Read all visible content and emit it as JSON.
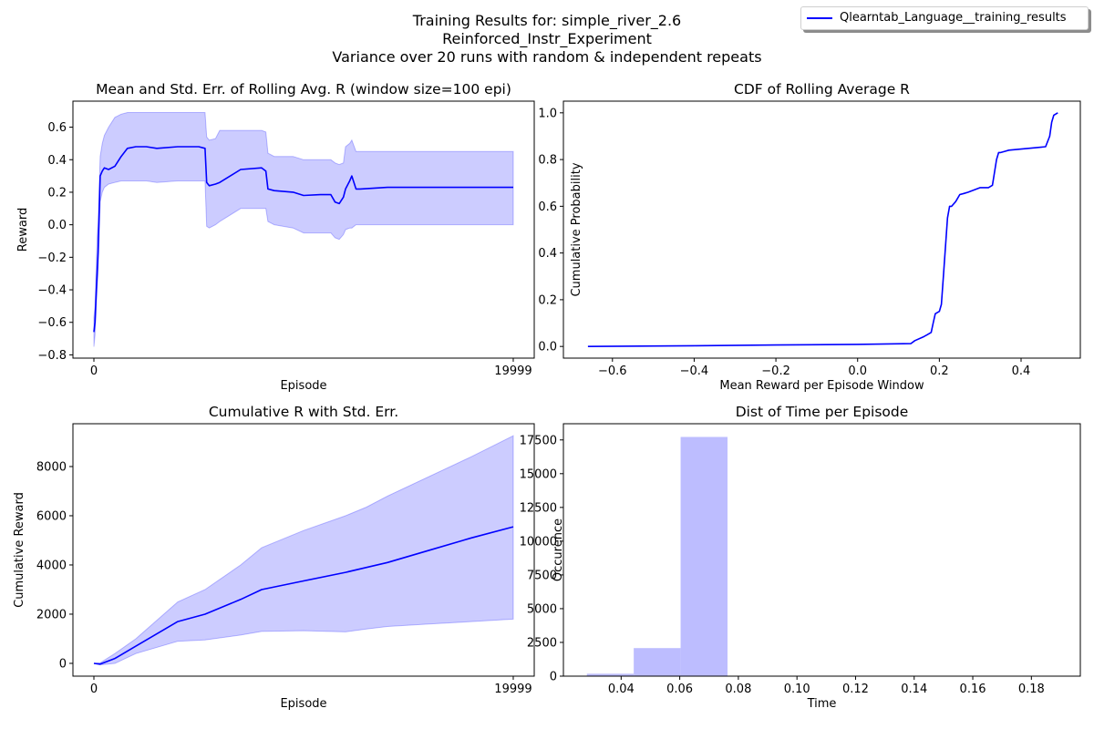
{
  "figure": {
    "suptitle_lines": [
      "Training Results for: simple_river_2.6",
      "Reinforced_Instr_Experiment",
      "Variance over 20 runs with random & independent repeats"
    ],
    "legend_label": "Qlearntab_Language__training_results",
    "colors": {
      "line": "#0000ff",
      "band": "#0000ff",
      "hist": "#bdbdff"
    }
  },
  "chart_data": [
    {
      "type": "line",
      "title": "Mean and Std. Err. of Rolling Avg. R (window size=100 epi)",
      "xlabel": "Episode",
      "ylabel": "Reward",
      "xlim": [
        -1000,
        21000
      ],
      "ylim": [
        -0.82,
        0.76
      ],
      "xticks": [
        0,
        19999
      ],
      "xtick_labels": [
        "0",
        "19999"
      ],
      "yticks": [
        -0.8,
        -0.6,
        -0.4,
        -0.2,
        0.0,
        0.2,
        0.4,
        0.6
      ],
      "ytick_labels": [
        "−0.8",
        "−0.6",
        "−0.4",
        "−0.2",
        "0.0",
        "0.2",
        "0.4",
        "0.6"
      ],
      "series": [
        {
          "x": [
            0,
            50,
            100,
            150,
            200,
            300,
            400,
            500,
            700,
            1000,
            1300,
            1600,
            2000,
            2500,
            3000,
            4000,
            5000,
            5300,
            5380,
            5500,
            5800,
            6000,
            7000,
            8000,
            8200,
            8300,
            8600,
            9500,
            10000,
            10800,
            11300,
            11500,
            11700,
            11900,
            12000,
            12200,
            12300,
            12500,
            12700,
            14000,
            16000,
            18000,
            19999
          ],
          "y": [
            -0.66,
            -0.6,
            -0.45,
            -0.3,
            -0.17,
            0.3,
            0.33,
            0.35,
            0.34,
            0.36,
            0.42,
            0.47,
            0.48,
            0.48,
            0.47,
            0.48,
            0.48,
            0.47,
            0.26,
            0.24,
            0.25,
            0.26,
            0.34,
            0.35,
            0.33,
            0.22,
            0.21,
            0.2,
            0.18,
            0.185,
            0.185,
            0.14,
            0.13,
            0.17,
            0.22,
            0.27,
            0.3,
            0.22,
            0.22,
            0.23,
            0.23,
            0.23,
            0.23
          ],
          "lower": [
            -0.75,
            -0.68,
            -0.55,
            -0.4,
            -0.3,
            0.14,
            0.2,
            0.23,
            0.25,
            0.26,
            0.27,
            0.27,
            0.27,
            0.27,
            0.26,
            0.27,
            0.27,
            0.27,
            -0.01,
            -0.02,
            0.0,
            0.02,
            0.1,
            0.1,
            0.1,
            0.02,
            0.0,
            -0.02,
            -0.05,
            -0.05,
            -0.05,
            -0.08,
            -0.09,
            -0.06,
            -0.03,
            -0.02,
            -0.02,
            0.0,
            0.0,
            0.0,
            0.0,
            0.0,
            0.0
          ],
          "upper": [
            -0.57,
            -0.5,
            -0.3,
            -0.08,
            0.02,
            0.42,
            0.5,
            0.55,
            0.6,
            0.66,
            0.68,
            0.69,
            0.69,
            0.69,
            0.69,
            0.69,
            0.69,
            0.69,
            0.54,
            0.52,
            0.53,
            0.58,
            0.58,
            0.58,
            0.57,
            0.44,
            0.42,
            0.42,
            0.4,
            0.4,
            0.4,
            0.38,
            0.37,
            0.38,
            0.48,
            0.5,
            0.52,
            0.45,
            0.45,
            0.45,
            0.45,
            0.45,
            0.45
          ]
        }
      ],
      "grid": false
    },
    {
      "type": "line",
      "title": "CDF of Rolling Average R",
      "xlabel": "Mean Reward per Episode Window",
      "ylabel": "Cumulative Probability",
      "xlim": [
        -0.72,
        0.545
      ],
      "ylim": [
        -0.05,
        1.05
      ],
      "xticks": [
        -0.6,
        -0.4,
        -0.2,
        0.0,
        0.2,
        0.4
      ],
      "xtick_labels": [
        "−0.6",
        "−0.4",
        "−0.2",
        "0.0",
        "0.2",
        "0.4"
      ],
      "yticks": [
        0.0,
        0.2,
        0.4,
        0.6,
        0.8,
        1.0
      ],
      "ytick_labels": [
        "0.0",
        "0.2",
        "0.4",
        "0.6",
        "0.8",
        "1.0"
      ],
      "series": [
        {
          "x": [
            -0.66,
            -0.4,
            -0.2,
            0.0,
            0.13,
            0.14,
            0.16,
            0.17,
            0.18,
            0.185,
            0.19,
            0.2,
            0.205,
            0.21,
            0.22,
            0.225,
            0.23,
            0.24,
            0.25,
            0.26,
            0.27,
            0.3,
            0.32,
            0.33,
            0.34,
            0.345,
            0.35,
            0.36,
            0.37,
            0.4,
            0.43,
            0.46,
            0.47,
            0.475,
            0.48,
            0.49
          ],
          "y": [
            0.0,
            0.003,
            0.006,
            0.009,
            0.012,
            0.025,
            0.04,
            0.05,
            0.06,
            0.1,
            0.14,
            0.15,
            0.18,
            0.3,
            0.55,
            0.6,
            0.6,
            0.62,
            0.65,
            0.655,
            0.66,
            0.68,
            0.68,
            0.69,
            0.8,
            0.83,
            0.83,
            0.835,
            0.84,
            0.845,
            0.85,
            0.855,
            0.9,
            0.96,
            0.99,
            1.0
          ]
        }
      ],
      "grid": false
    },
    {
      "type": "line",
      "title": "Cumulative R with Std. Err.",
      "xlabel": "Episode",
      "ylabel": "Cumulative Reward",
      "xlim": [
        -1000,
        21000
      ],
      "ylim": [
        -520,
        9740
      ],
      "xticks": [
        0,
        19999
      ],
      "xtick_labels": [
        "0",
        "19999"
      ],
      "yticks": [
        0,
        2000,
        4000,
        6000,
        8000
      ],
      "ytick_labels": [
        "0",
        "2000",
        "4000",
        "6000",
        "8000"
      ],
      "series": [
        {
          "x": [
            0,
            300,
            1000,
            2000,
            4000,
            5300,
            7000,
            8000,
            10000,
            12000,
            13000,
            14000,
            16000,
            18000,
            19999
          ],
          "y": [
            0,
            -30,
            200,
            700,
            1700,
            2000,
            2600,
            3000,
            3350,
            3700,
            3900,
            4100,
            4600,
            5100,
            5550
          ],
          "lower": [
            0,
            -60,
            0,
            400,
            900,
            950,
            1150,
            1300,
            1330,
            1280,
            1400,
            1500,
            1600,
            1700,
            1800
          ],
          "upper": [
            0,
            20,
            400,
            1000,
            2500,
            3000,
            4000,
            4700,
            5400,
            6000,
            6350,
            6800,
            7600,
            8400,
            9250
          ]
        }
      ],
      "grid": false
    },
    {
      "type": "bar",
      "title": "Dist of Time per Episode",
      "xlabel": "Time",
      "ylabel": "Occurence",
      "xlim": [
        0.0203,
        0.1967
      ],
      "ylim": [
        0,
        18700
      ],
      "xticks": [
        0.04,
        0.06,
        0.08,
        0.1,
        0.12,
        0.14,
        0.16,
        0.18
      ],
      "xtick_labels": [
        "0.04",
        "0.06",
        "0.08",
        "0.10",
        "0.12",
        "0.14",
        "0.16",
        "0.18"
      ],
      "yticks": [
        0,
        2500,
        5000,
        7500,
        10000,
        12500,
        15000,
        17500
      ],
      "ytick_labels": [
        "0",
        "2500",
        "5000",
        "7500",
        "10000",
        "12500",
        "15000",
        "17500"
      ],
      "bin_edges": [
        0.0283,
        0.0443,
        0.0603,
        0.0763,
        0.0923,
        0.1083,
        0.1243,
        0.1403,
        0.1563,
        0.1723,
        0.1883
      ],
      "counts": [
        180,
        2080,
        17720,
        4,
        2,
        2,
        2,
        2,
        2,
        2
      ],
      "grid": false
    }
  ]
}
